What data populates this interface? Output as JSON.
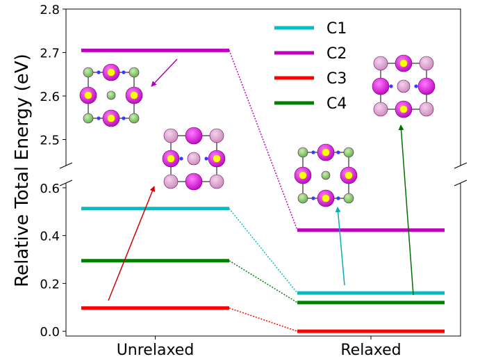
{
  "chart_data": {
    "type": "line",
    "title": "",
    "xlabel": "",
    "ylabel": "Relative Total Energy (eV)",
    "categories": [
      "Unrelaxed",
      "Relaxed"
    ],
    "broken_axis": true,
    "upper_ylim": [
      2.44,
      2.8
    ],
    "lower_ylim": [
      -0.02,
      0.62
    ],
    "upper_yticks": [
      "2.5",
      "2.6",
      "2.7",
      "2.8"
    ],
    "lower_yticks": [
      "0.0",
      "0.2",
      "0.4",
      "0.6"
    ],
    "legend_position": "top-center",
    "series": [
      {
        "name": "C1",
        "color": "#00BFC4",
        "values": [
          0.513,
          0.16
        ]
      },
      {
        "name": "C2",
        "color": "#BF00BF",
        "values": [
          2.705,
          0.423
        ]
      },
      {
        "name": "C3",
        "color": "#FF0000",
        "values": [
          0.097,
          0.0
        ]
      },
      {
        "name": "C4",
        "color": "#008000",
        "values": [
          0.295,
          0.12
        ]
      }
    ],
    "insets": [
      {
        "name": "C2-unrelaxed-structure",
        "color": "#BF00BF"
      },
      {
        "name": "C3-unrelaxed-structure",
        "color": "#FF0000"
      },
      {
        "name": "C1-relaxed-structure",
        "color": "#00BFC4"
      },
      {
        "name": "C4-relaxed-structure",
        "color": "#008000"
      }
    ]
  }
}
